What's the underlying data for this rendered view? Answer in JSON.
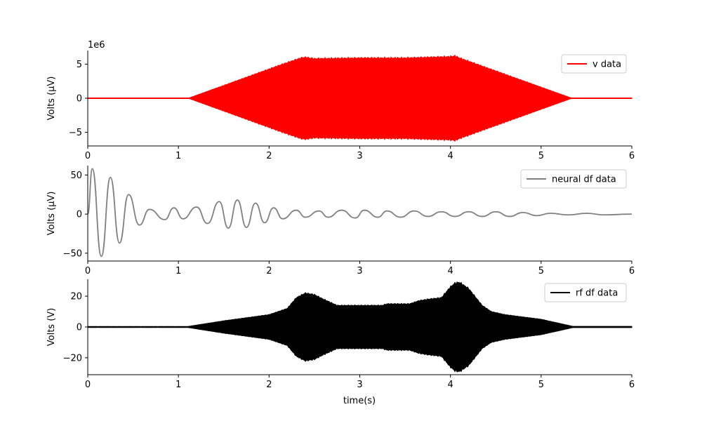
{
  "figure": {
    "xlabel": "time(s)"
  },
  "chart_data": [
    {
      "type": "line",
      "panel": "top",
      "ylabel": "Volts (μV)",
      "y_offset_label": "1e6",
      "xlim": [
        0,
        6
      ],
      "ylim": [
        -7,
        7
      ],
      "xticks": [
        0,
        1,
        2,
        3,
        4,
        5,
        6
      ],
      "yticks": [
        -5,
        0,
        5
      ],
      "ytick_labels": [
        "−5",
        "0",
        "5"
      ],
      "series": [
        {
          "name": "v data",
          "color": "#ff0000",
          "render": "oscillation-envelope",
          "envelope": {
            "t": [
              0,
              1.12,
              2.15,
              2.35,
              2.4,
              2.5,
              3.0,
              3.5,
              4.0,
              4.05,
              4.1,
              5.33,
              6
            ],
            "amp": [
              0.05,
              0.05,
              5.0,
              5.9,
              6.0,
              5.8,
              5.9,
              5.9,
              6.1,
              6.2,
              5.9,
              0.05,
              0.05
            ]
          }
        }
      ],
      "legend": "top-right",
      "grid": false
    },
    {
      "type": "line",
      "panel": "middle",
      "ylabel": "Volts (μV)",
      "xlim": [
        0,
        6
      ],
      "ylim": [
        -60,
        62
      ],
      "xticks": [
        0,
        1,
        2,
        3,
        4,
        5,
        6
      ],
      "yticks": [
        -50,
        0,
        50
      ],
      "ytick_labels": [
        "−50",
        "0",
        "50"
      ],
      "series": [
        {
          "name": "neural df data",
          "color": "#808080",
          "render": "smooth-line",
          "points": [
            [
              0,
              0
            ],
            [
              0.05,
              58
            ],
            [
              0.15,
              -54
            ],
            [
              0.25,
              47
            ],
            [
              0.35,
              -37
            ],
            [
              0.45,
              25
            ],
            [
              0.57,
              -14
            ],
            [
              0.68,
              6
            ],
            [
              0.85,
              -7
            ],
            [
              0.95,
              8
            ],
            [
              1.05,
              -6
            ],
            [
              1.2,
              9
            ],
            [
              1.32,
              -12
            ],
            [
              1.45,
              16
            ],
            [
              1.55,
              -18
            ],
            [
              1.65,
              18
            ],
            [
              1.75,
              -17
            ],
            [
              1.85,
              14
            ],
            [
              1.95,
              -11
            ],
            [
              2.05,
              8
            ],
            [
              2.15,
              -6
            ],
            [
              2.3,
              5
            ],
            [
              2.4,
              -4
            ],
            [
              2.55,
              4
            ],
            [
              2.65,
              -4
            ],
            [
              2.8,
              5
            ],
            [
              2.95,
              -5
            ],
            [
              3.05,
              5
            ],
            [
              3.2,
              -4
            ],
            [
              3.3,
              4
            ],
            [
              3.45,
              -4
            ],
            [
              3.6,
              4
            ],
            [
              3.75,
              -3
            ],
            [
              3.9,
              3
            ],
            [
              4.05,
              -3
            ],
            [
              4.2,
              3
            ],
            [
              4.35,
              -3
            ],
            [
              4.5,
              3
            ],
            [
              4.65,
              -3
            ],
            [
              4.8,
              2
            ],
            [
              4.95,
              -2
            ],
            [
              5.1,
              1
            ],
            [
              5.3,
              -1
            ],
            [
              5.5,
              1
            ],
            [
              5.7,
              -1
            ],
            [
              6,
              0
            ]
          ]
        }
      ],
      "legend": "top-right",
      "grid": false
    },
    {
      "type": "line",
      "panel": "bottom",
      "ylabel": "Volts (V)",
      "xlim": [
        0,
        6
      ],
      "ylim": [
        -31,
        31
      ],
      "xticks": [
        0,
        1,
        2,
        3,
        4,
        5,
        6
      ],
      "yticks": [
        -20,
        0,
        20
      ],
      "ytick_labels": [
        "−20",
        "0",
        "20"
      ],
      "series": [
        {
          "name": "rf df data",
          "color": "#000000",
          "render": "oscillation-envelope",
          "envelope": {
            "t": [
              0,
              1.1,
              1.5,
              2.0,
              2.2,
              2.3,
              2.4,
              2.5,
              2.6,
              2.75,
              3.25,
              3.3,
              3.55,
              3.65,
              3.75,
              3.9,
              4.0,
              4.05,
              4.1,
              4.2,
              4.35,
              4.45,
              4.6,
              5.0,
              5.35,
              6
            ],
            "amp": [
              0.3,
              0.3,
              4.0,
              8.0,
              12.0,
              19.0,
              22.0,
              21.0,
              18.0,
              14.0,
              14.0,
              15.0,
              15.0,
              17.0,
              18.0,
              19.0,
              26.0,
              28.5,
              29.0,
              25.0,
              14.0,
              10.0,
              8.0,
              5.0,
              0.4,
              0.4
            ]
          }
        }
      ],
      "legend": "top-right",
      "grid": false
    }
  ]
}
